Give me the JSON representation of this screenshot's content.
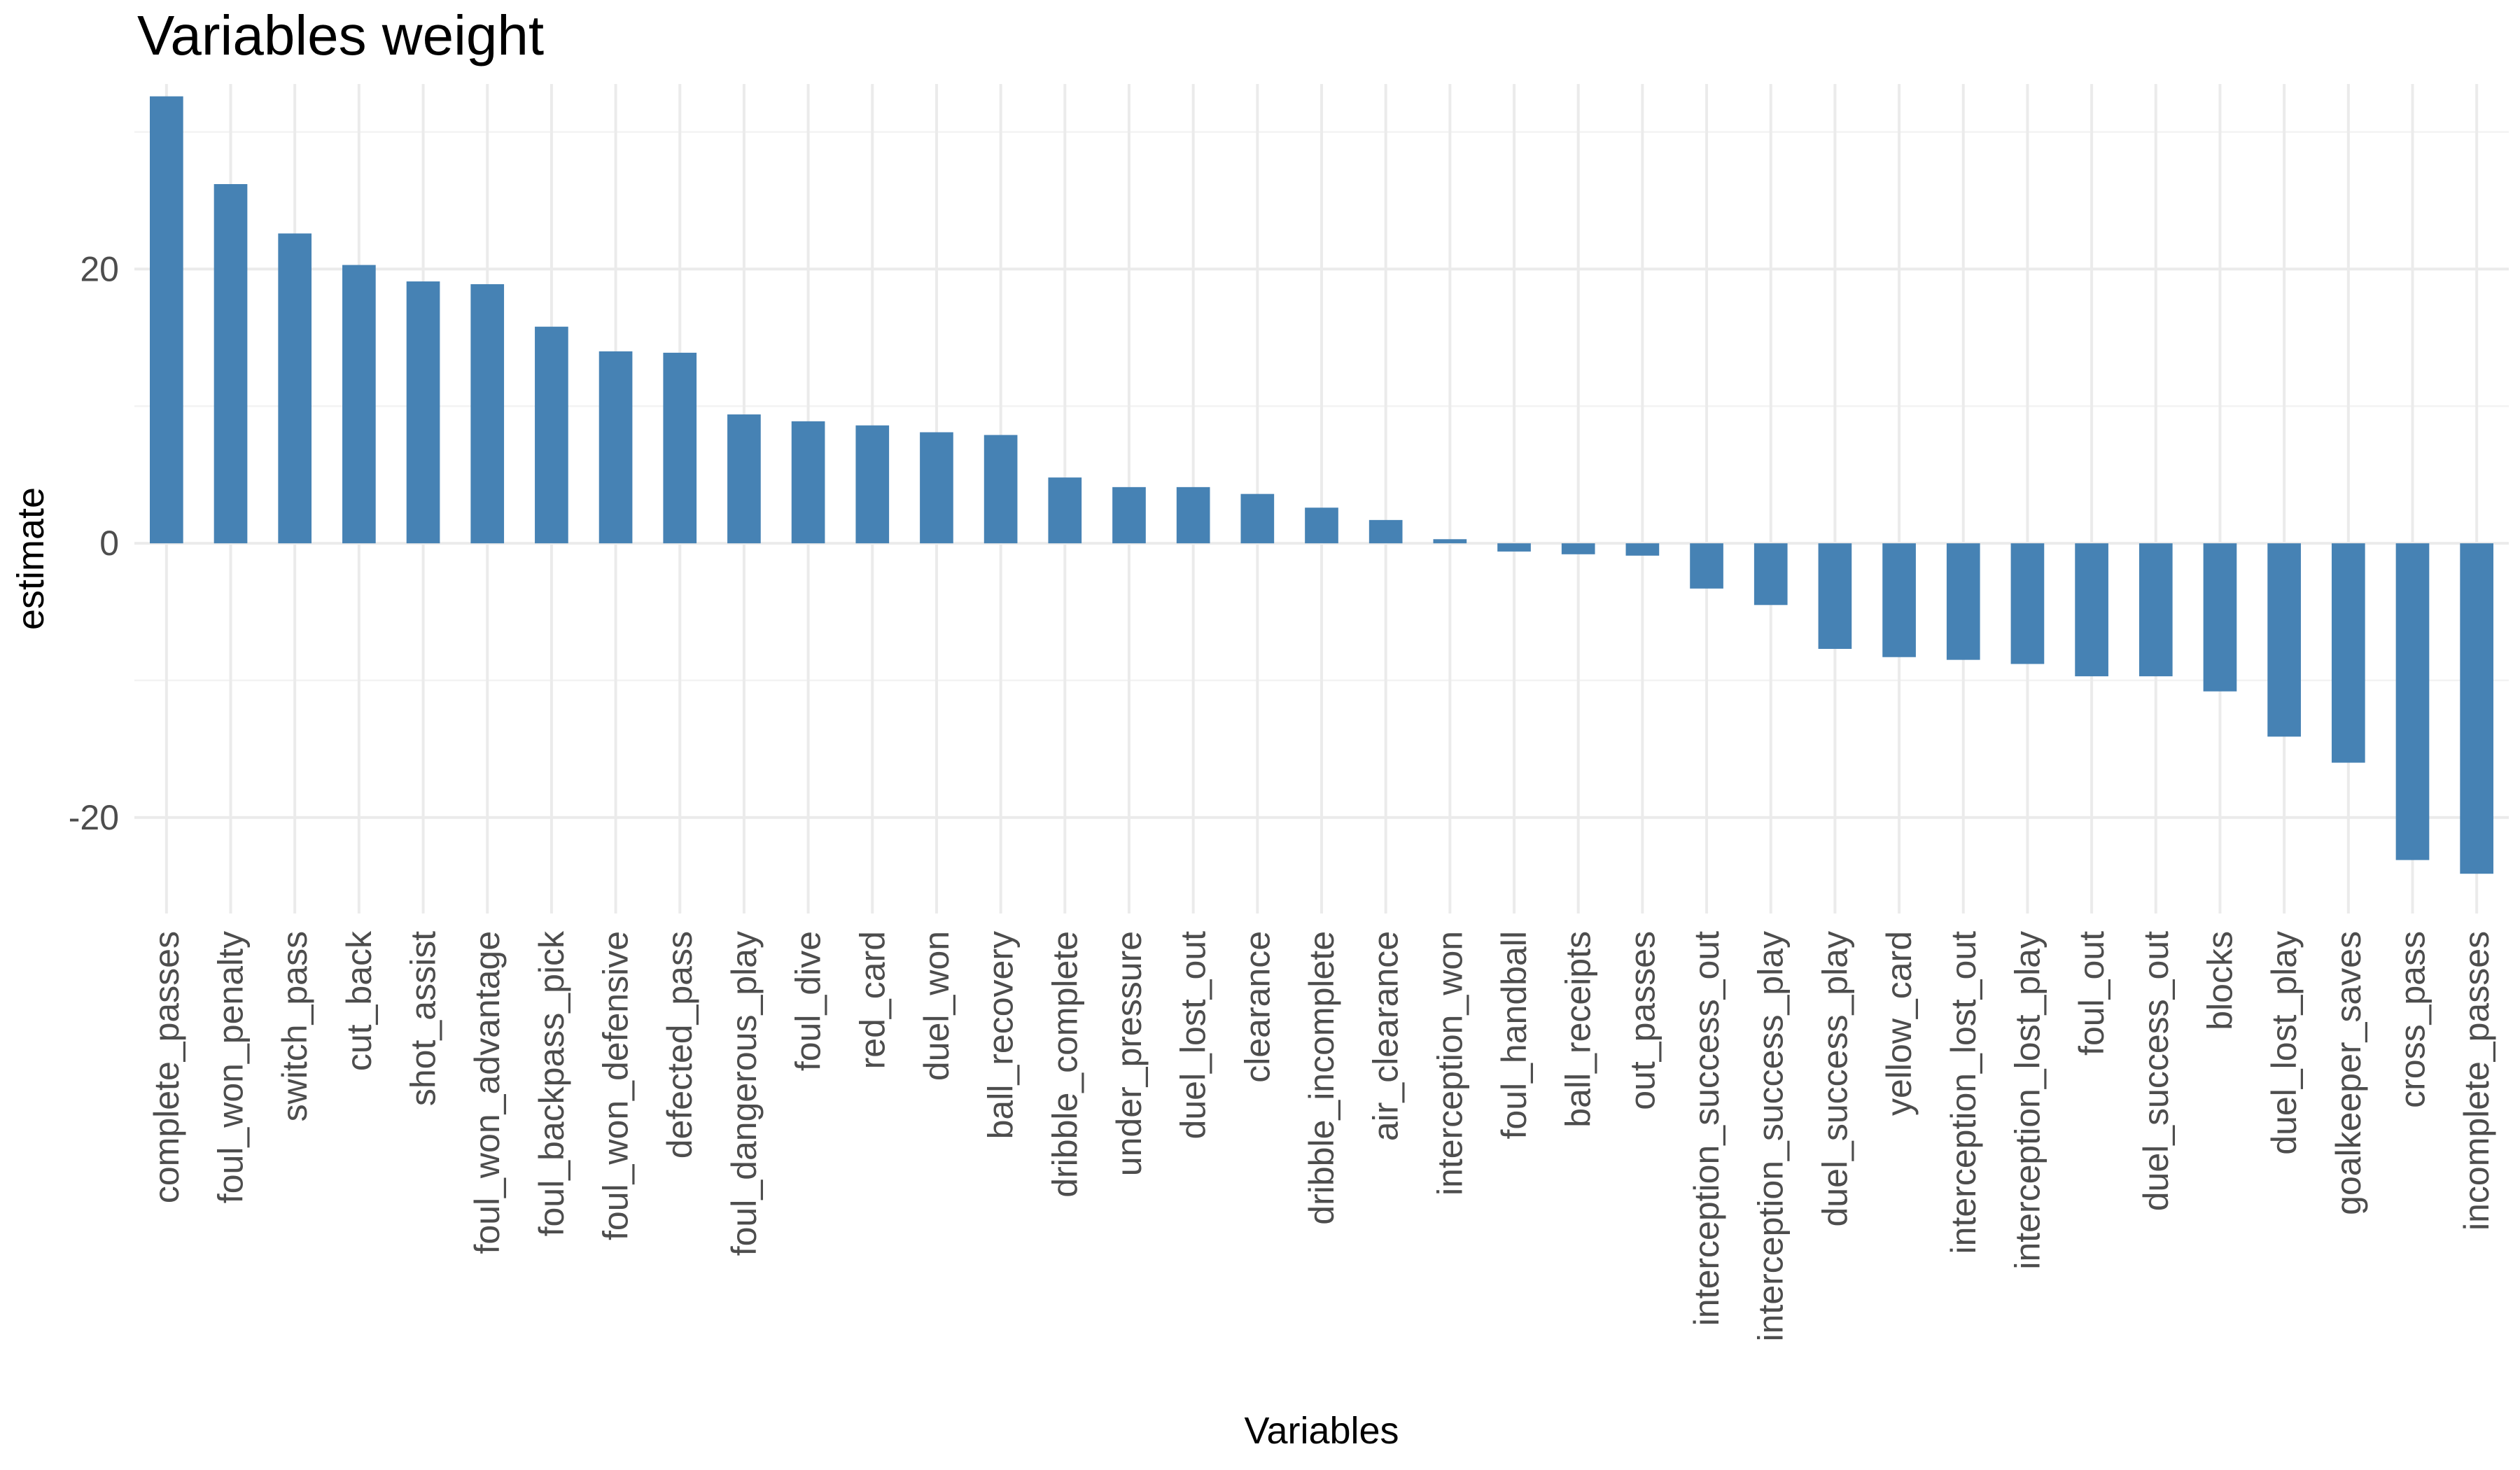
{
  "chart_data": {
    "type": "bar",
    "title": "Variables weight",
    "xlabel": "Variables",
    "ylabel": "estimate",
    "ylim": [
      -27,
      33.5
    ],
    "yticks": [
      -20,
      0,
      20
    ],
    "grid": true,
    "bar_color": "#4682b4",
    "categories": [
      "complete_passes",
      "foul_won_penalty",
      "switch_pass",
      "cut_back",
      "shot_assist",
      "foul_won_advantage",
      "foul_backpass_pick",
      "foul_won_defensive",
      "defected_pass",
      "foul_dangerous_play",
      "foul_dive",
      "red_card",
      "duel_won",
      "ball_recovery",
      "dribble_complete",
      "under_pressure",
      "duel_lost_out",
      "clearance",
      "dribble_incomplete",
      "air_clearance",
      "interception_won",
      "foul_handball",
      "ball_receipts",
      "out_passes",
      "interception_success_out",
      "interception_success_play",
      "duel_success_play",
      "yellow_card",
      "interception_lost_out",
      "interception_lost_play",
      "foul_out",
      "duel_success_out",
      "blocks",
      "duel_lost_play",
      "goalkeeper_saves",
      "cross_pass",
      "incomplete_passes"
    ],
    "values": [
      32.6,
      26.2,
      22.6,
      20.3,
      19.1,
      18.9,
      15.8,
      14.0,
      13.9,
      9.4,
      8.9,
      8.6,
      8.1,
      7.9,
      4.8,
      4.1,
      4.1,
      3.6,
      2.6,
      1.7,
      0.3,
      -0.6,
      -0.8,
      -0.9,
      -3.3,
      -4.5,
      -7.7,
      -8.3,
      -8.5,
      -8.8,
      -9.7,
      -9.7,
      -10.8,
      -14.1,
      -16.0,
      -23.1,
      -24.1
    ]
  }
}
